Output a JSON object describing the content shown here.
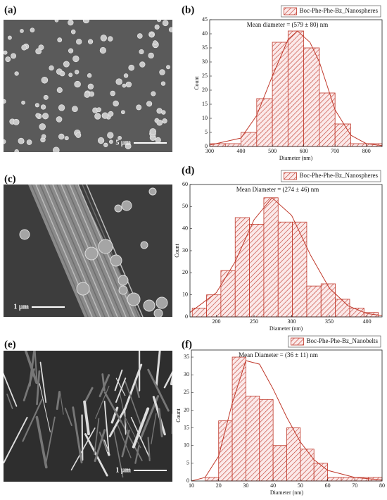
{
  "panel_labels": [
    "(a)",
    "(b)",
    "(c)",
    "(d)",
    "(e)",
    "(f)"
  ],
  "scale_bars": [
    "5 µm",
    "1 µm",
    "1 µm"
  ],
  "chart_data": [
    {
      "type": "histogram",
      "name": "Boc-Phe-Phe-Bz_Nanospheres",
      "annotation": "Mean diameter = (579 ± 80) nm",
      "x_label": "Diameter (nm)",
      "y_label": "Count",
      "color": "#c0392b",
      "bins": [
        300,
        350,
        400,
        450,
        500,
        550,
        600,
        650,
        700,
        750,
        800,
        850
      ],
      "values": [
        1,
        1,
        5,
        17,
        37,
        41,
        35,
        19,
        8,
        1,
        1
      ],
      "fit": {
        "x": [
          300,
          400,
          450,
          500,
          550,
          580,
          620,
          650,
          700,
          750,
          800,
          850
        ],
        "values": [
          0.5,
          3,
          11,
          25,
          38,
          41,
          37,
          30,
          13,
          4,
          1,
          0.3
        ]
      },
      "xlim": [
        300,
        850
      ],
      "xticks": [
        300,
        400,
        500,
        600,
        700,
        800
      ],
      "ylim": [
        0,
        45
      ],
      "yticks": [
        0,
        5,
        10,
        15,
        20,
        25,
        30,
        35,
        40,
        45
      ]
    },
    {
      "type": "histogram",
      "name": "Boc-Phe-Phe-Bz_Nanospheres",
      "annotation": "Mean Diameter = (274 ± 46) nm",
      "x_label": "Diameter (nm)",
      "y_label": "Count",
      "color": "#c0392b",
      "bins": [
        168,
        187,
        206,
        225,
        244,
        263,
        282,
        301,
        320,
        339,
        358,
        377,
        396,
        415
      ],
      "values": [
        4,
        10,
        21,
        45,
        42,
        54,
        43,
        43,
        14,
        15,
        8,
        4,
        2
      ],
      "fit": {
        "x": [
          165,
          200,
          225,
          250,
          274,
          300,
          325,
          350,
          375,
          400,
          420
        ],
        "values": [
          2,
          11,
          25,
          44,
          54,
          46,
          28,
          13,
          5,
          1.5,
          0.6
        ]
      },
      "xlim": [
        165,
        420
      ],
      "xticks": [
        200,
        250,
        300,
        350,
        400
      ],
      "ylim": [
        0,
        60
      ],
      "yticks": [
        0,
        10,
        20,
        30,
        40,
        50,
        60
      ]
    },
    {
      "type": "histogram",
      "name": "Boc-Phe-Phe-Bz_Nanobelts",
      "annotation": "Mean Diameter = (36 ± 11) nm",
      "x_label": "Diameter (nm)",
      "y_label": "Count",
      "color": "#c0392b",
      "bins": [
        15,
        20,
        25,
        30,
        35,
        40,
        45,
        50,
        55,
        60,
        65,
        70,
        75,
        80
      ],
      "values": [
        1,
        17,
        35,
        24,
        23,
        10,
        15,
        9,
        5,
        1,
        1,
        1,
        1
      ],
      "fit": {
        "x": [
          10,
          15,
          20,
          25,
          30,
          35,
          40,
          45,
          50,
          55,
          60,
          70,
          80
        ],
        "values": [
          0,
          1,
          7,
          22,
          34,
          33,
          26,
          18,
          11,
          6,
          3,
          1,
          0.3
        ]
      },
      "xlim": [
        10,
        80
      ],
      "xticks": [
        10,
        20,
        30,
        40,
        50,
        60,
        70,
        80
      ],
      "ylim": [
        0,
        37
      ],
      "yticks": [
        0,
        5,
        10,
        15,
        20,
        25,
        30,
        35
      ]
    }
  ]
}
